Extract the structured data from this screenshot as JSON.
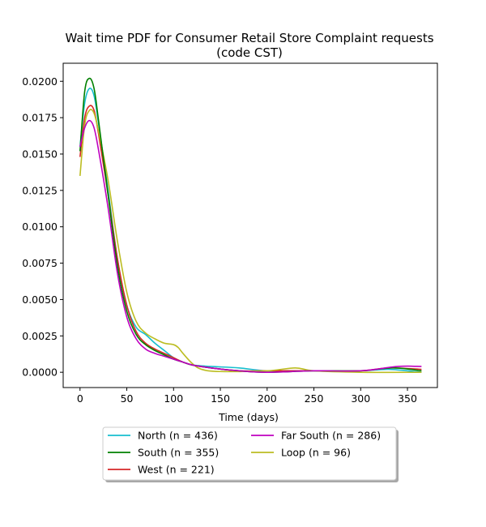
{
  "chart_data": {
    "type": "line",
    "title_line1": "Wait time PDF for Consumer Retail Store Complaint  requests",
    "title_line2": "(code CST)",
    "xlabel": "Time (days)",
    "ylabel": "",
    "xlim": [
      -18,
      382
    ],
    "ylim": [
      -0.00105,
      0.02124
    ],
    "xticks": [
      0,
      50,
      100,
      150,
      200,
      250,
      300,
      350
    ],
    "yticks": [
      0.0,
      0.0025,
      0.005,
      0.0075,
      0.01,
      0.0125,
      0.015,
      0.0175,
      0.02
    ],
    "ytick_labels": [
      "0.0000",
      "0.0025",
      "0.0050",
      "0.0075",
      "0.0100",
      "0.0125",
      "0.0150",
      "0.0175",
      "0.0200"
    ],
    "legend_position": "below",
    "grid": false,
    "series": [
      {
        "name": "North (n = 436)",
        "color": "#17becf",
        "x": [
          0,
          5,
          10,
          15,
          20,
          30,
          40,
          50,
          60,
          70,
          80,
          90,
          100,
          110,
          120,
          140,
          170,
          200,
          250,
          300,
          330,
          365
        ],
        "y": [
          0.0155,
          0.0185,
          0.0195,
          0.019,
          0.017,
          0.0125,
          0.0078,
          0.0046,
          0.0031,
          0.0026,
          0.002,
          0.0015,
          0.001,
          0.0007,
          0.0005,
          0.0004,
          0.0003,
          0.0001,
          0.0001,
          0.0001,
          0.0002,
          0.0
        ]
      },
      {
        "name": "West (n = 221)",
        "color": "#d62728",
        "x": [
          0,
          5,
          10,
          15,
          20,
          30,
          40,
          50,
          60,
          70,
          80,
          90,
          100,
          110,
          120,
          140,
          170,
          200,
          250,
          300,
          330,
          365
        ],
        "y": [
          0.0148,
          0.0175,
          0.0183,
          0.018,
          0.0163,
          0.0122,
          0.0078,
          0.0046,
          0.0028,
          0.002,
          0.0016,
          0.0013,
          0.001,
          0.0007,
          0.0005,
          0.0003,
          0.0001,
          0.0001,
          0.0001,
          0.0001,
          0.0003,
          0.0002
        ]
      },
      {
        "name": "Loop (n = 96)",
        "color": "#bcbd22",
        "x": [
          0,
          5,
          10,
          15,
          20,
          30,
          40,
          50,
          60,
          70,
          80,
          90,
          100,
          105,
          110,
          120,
          130,
          150,
          200,
          230,
          250,
          300,
          365
        ],
        "y": [
          0.0135,
          0.017,
          0.018,
          0.0178,
          0.0165,
          0.0132,
          0.009,
          0.0055,
          0.0035,
          0.0027,
          0.0023,
          0.002,
          0.0019,
          0.0017,
          0.0013,
          0.0006,
          0.0002,
          5e-05,
          0.0001,
          0.0003,
          0.0001,
          0.0,
          0.0
        ]
      },
      {
        "name": "South (n = 355)",
        "color": "#008000",
        "x": [
          0,
          5,
          10,
          15,
          20,
          30,
          40,
          50,
          60,
          70,
          80,
          90,
          100,
          110,
          120,
          140,
          170,
          200,
          250,
          300,
          335,
          365
        ],
        "y": [
          0.0152,
          0.0193,
          0.0202,
          0.0195,
          0.0172,
          0.0122,
          0.0073,
          0.0042,
          0.0026,
          0.0019,
          0.0015,
          0.0012,
          0.0009,
          0.0007,
          0.0005,
          0.0003,
          0.0001,
          0.0,
          0.0001,
          0.0001,
          0.0003,
          0.0001
        ]
      },
      {
        "name": "Far South (n = 286)",
        "color": "#bf00bf",
        "x": [
          0,
          5,
          10,
          15,
          20,
          30,
          40,
          50,
          60,
          70,
          80,
          90,
          100,
          110,
          120,
          140,
          170,
          200,
          250,
          300,
          340,
          365
        ],
        "y": [
          0.0155,
          0.0168,
          0.0173,
          0.0168,
          0.0152,
          0.0113,
          0.0068,
          0.0038,
          0.0023,
          0.0016,
          0.0013,
          0.0011,
          0.0009,
          0.0007,
          0.0005,
          0.0003,
          0.0001,
          0.0,
          0.0001,
          0.0001,
          0.0004,
          0.0004
        ]
      }
    ],
    "legend_order": [
      0,
      3,
      1,
      4,
      2
    ]
  }
}
